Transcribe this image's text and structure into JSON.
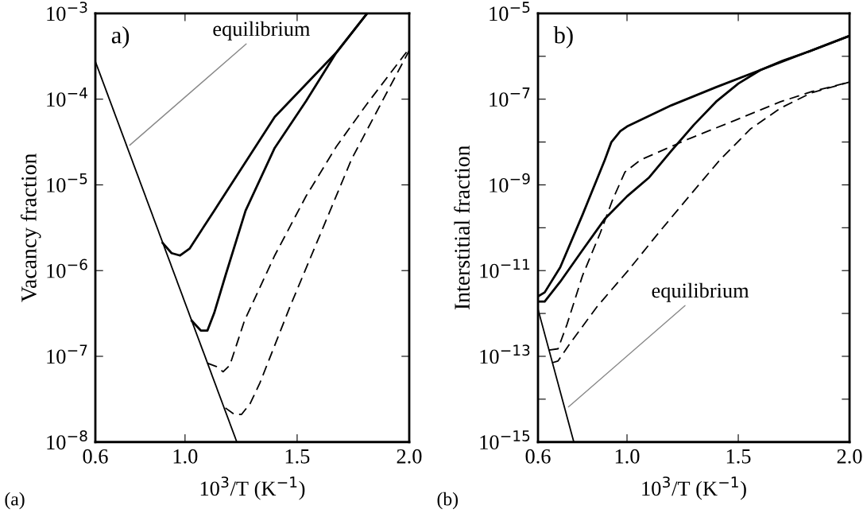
{
  "chart_data": [
    {
      "type": "line",
      "ylabel": "Vacancy fraction",
      "xlabel": "10$^{3}$/T (K$^{−1}$)",
      "log": "y",
      "grid": false,
      "legend": false,
      "xlim": [
        0.6,
        2.0
      ],
      "ylim": [
        1e-08,
        0.001
      ],
      "xticks": [
        {
          "value": 0.6,
          "label": "0.6"
        },
        {
          "value": 1.0,
          "label": "1.0"
        },
        {
          "value": 1.5,
          "label": "1.5"
        },
        {
          "value": 2.0,
          "label": "2.0"
        }
      ],
      "yticks": [
        {
          "value": 1e-08,
          "label": "10$^{−8}$"
        },
        {
          "value": 1e-07,
          "label": "10$^{−7}$"
        },
        {
          "value": 1e-06,
          "label": "10$^{−6}$"
        },
        {
          "value": 1e-05,
          "label": "10$^{−5}$"
        },
        {
          "value": 0.0001,
          "label": "10$^{−4}$"
        },
        {
          "value": 0.001,
          "label": "10$^{−3}$"
        }
      ],
      "annotations": [
        "a)",
        {
          "text": "equilibrium",
          "x": 0.753,
          "y": 2.9e-05
        },
        "(a)"
      ],
      "series": [
        {
          "color": "#000000",
          "line_style": "solid",
          "x": [
            0.6,
            1.231
          ],
          "values": [
            0.000275,
            1e-08
          ]
        },
        {
          "color": "#000000",
          "line_style": "solid",
          "x": [
            0.9,
            0.94,
            0.978,
            1.02,
            1.13,
            1.4,
            1.675,
            1.812
          ],
          "values": [
            2.1e-06,
            1.6e-06,
            1.5e-06,
            1.8e-06,
            5e-06,
            6.2e-05,
            0.00035,
            0.001
          ]
        },
        {
          "color": "#000000",
          "line_style": "solid",
          "x": [
            1.03,
            1.07,
            1.1,
            1.13,
            1.18,
            1.27,
            1.4,
            1.54,
            1.675,
            1.812
          ],
          "values": [
            2.6e-07,
            2e-07,
            2e-07,
            3.2e-07,
            8.7e-07,
            5e-06,
            2.7e-05,
            9.5e-05,
            0.00035,
            0.001
          ]
        },
        {
          "color": "#000000",
          "line_style": "dashed",
          "x": [
            1.1,
            1.14,
            1.17,
            1.2,
            1.265,
            1.4,
            1.54,
            1.675,
            1.81,
            2.0
          ],
          "values": [
            8.3e-08,
            7.6e-08,
            6.6e-08,
            7.9e-08,
            2.6e-07,
            1.5e-06,
            7.4e-06,
            2.8e-05,
            8.7e-05,
            0.00039
          ]
        },
        {
          "color": "#000000",
          "line_style": "dashed",
          "x": [
            1.18,
            1.22,
            1.252,
            1.29,
            1.334,
            1.47,
            1.607,
            1.743,
            1.88,
            2.0
          ],
          "values": [
            2.5e-08,
            2.1e-08,
            2.1e-08,
            2.8e-08,
            4.9e-08,
            3.9e-07,
            2.8e-06,
            2e-05,
            9.5e-05,
            0.00037
          ]
        }
      ]
    },
    {
      "type": "line",
      "ylabel": "Interstitial fraction",
      "xlabel": "10$^{3}$/T (K$^{−1}$)",
      "log": "y",
      "grid": false,
      "legend": false,
      "xlim": [
        0.6,
        2.0
      ],
      "ylim": [
        1e-15,
        1e-05
      ],
      "xticks": [
        {
          "value": 0.6,
          "label": "0.6"
        },
        {
          "value": 1.0,
          "label": "1.0"
        },
        {
          "value": 1.5,
          "label": "1.5"
        },
        {
          "value": 2.0,
          "label": "2.0"
        }
      ],
      "yticks": [
        {
          "value": 1e-15,
          "label": "10$^{−15}$"
        },
        {
          "value": 1e-14,
          "label": null
        },
        {
          "value": 1e-13,
          "label": "10$^{−13}$"
        },
        {
          "value": 1e-12,
          "label": null
        },
        {
          "value": 1e-11,
          "label": "10$^{−11}$"
        },
        {
          "value": 1e-10,
          "label": null
        },
        {
          "value": 1e-09,
          "label": "10$^{−9}$"
        },
        {
          "value": 1e-08,
          "label": null
        },
        {
          "value": 1e-07,
          "label": "10$^{−7}$"
        },
        {
          "value": 1e-06,
          "label": null
        },
        {
          "value": 1e-05,
          "label": "10$^{−5}$"
        }
      ],
      "annotations": [
        "b)",
        {
          "text": "equilibrium",
          "x": 0.737,
          "y": 6.6e-15
        },
        "(b)"
      ],
      "series": [
        {
          "color": "#000000",
          "line_style": "solid",
          "x": [
            0.6,
            0.761
          ],
          "values": [
            1.26e-12,
            1e-15
          ]
        },
        {
          "color": "#000000",
          "line_style": "solid",
          "x": [
            0.6,
            0.63,
            0.7,
            0.8,
            0.9,
            0.93,
            0.97,
            1.0,
            1.2,
            1.4,
            1.6,
            1.8,
            2.0
          ],
          "values": [
            2.5e-12,
            3.1e-12,
            1.2e-11,
            2e-10,
            3.8e-09,
            1e-08,
            1.8e-08,
            2.3e-08,
            7.2e-08,
            1.9e-07,
            4.8e-07,
            1.2e-06,
            3e-06
          ]
        },
        {
          "color": "#000000",
          "line_style": "solid",
          "x": [
            0.6,
            0.63,
            0.7,
            0.8,
            0.9,
            1.0,
            1.1,
            1.2,
            1.3,
            1.4,
            1.5,
            1.6,
            1.7,
            1.8,
            2.0
          ],
          "values": [
            1.9e-12,
            1.9e-12,
            5.5e-12,
            3e-11,
            1.6e-10,
            5.4e-10,
            1.5e-09,
            6.3e-09,
            2.5e-08,
            8.7e-08,
            2.3e-07,
            4.8e-07,
            7.9e-07,
            1.2e-06,
            3e-06
          ]
        },
        {
          "color": "#000000",
          "line_style": "dashed",
          "x": [
            0.65,
            0.69,
            0.73,
            0.8,
            0.88,
            0.936,
            0.991,
            1.06,
            1.14,
            1.28,
            1.485,
            1.69,
            1.83,
            2.0
          ],
          "values": [
            1.4e-13,
            1.5e-13,
            5.5e-13,
            7.6e-12,
            7.6e-11,
            4.6e-10,
            2e-09,
            3.8e-09,
            5.8e-09,
            1.2e-08,
            3.2e-08,
            8.7e-08,
            1.5e-07,
            2.5e-07
          ]
        },
        {
          "color": "#000000",
          "line_style": "dashed",
          "x": [
            0.665,
            0.69,
            0.744,
            0.868,
            1.005,
            1.142,
            1.279,
            1.417,
            1.554,
            1.69,
            1.828,
            2.0
          ],
          "values": [
            7.1e-14,
            7.8e-14,
            2e-13,
            1.5e-12,
            1e-11,
            7.6e-11,
            5.4e-10,
            3.8e-09,
            2e-08,
            6.2e-08,
            1.4e-07,
            2.5e-07
          ]
        }
      ]
    }
  ]
}
